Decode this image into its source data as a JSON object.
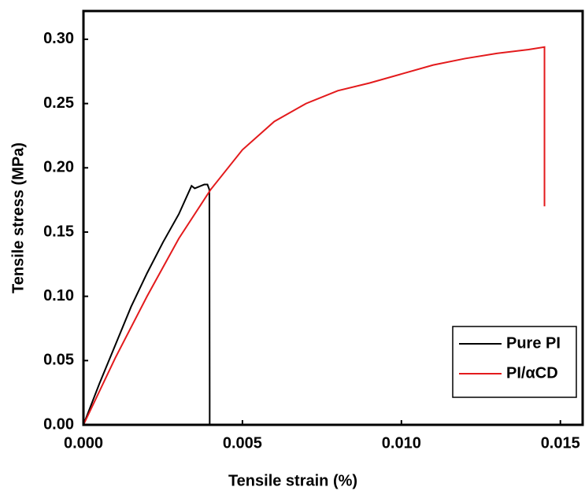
{
  "chart_data": {
    "type": "line",
    "x_label": "Tensile strain (%)",
    "y_label": "Tensile stress (MPa)",
    "xlim": [
      0,
      0.0157
    ],
    "ylim": [
      0,
      0.322
    ],
    "xticks": [
      {
        "value": 0,
        "label": "0.000"
      },
      {
        "value": 0.005,
        "label": "0.005"
      },
      {
        "value": 0.01,
        "label": "0.010"
      },
      {
        "value": 0.015,
        "label": "0.015"
      }
    ],
    "yticks": [
      {
        "value": 0,
        "label": "0.00"
      },
      {
        "value": 0.05,
        "label": "0.05"
      },
      {
        "value": 0.1,
        "label": "0.10"
      },
      {
        "value": 0.15,
        "label": "0.15"
      },
      {
        "value": 0.2,
        "label": "0.20"
      },
      {
        "value": 0.25,
        "label": "0.25"
      },
      {
        "value": 0.3,
        "label": "0.30"
      }
    ],
    "legend_position": "lower right",
    "series": [
      {
        "name": "Pure PI",
        "color": "#000000",
        "x": [
          0,
          0.0005,
          0.001,
          0.0015,
          0.002,
          0.0025,
          0.003,
          0.0034,
          0.0035,
          0.0036,
          0.0038,
          0.0039,
          0.00396,
          0.00397,
          0.00397
        ],
        "values": [
          0,
          0.032,
          0.062,
          0.092,
          0.118,
          0.142,
          0.164,
          0.186,
          0.184,
          0.185,
          0.187,
          0.187,
          0.183,
          0.02,
          0
        ]
      },
      {
        "name": "PI/αCD",
        "color": "#e31a1c",
        "x": [
          0,
          0.001,
          0.002,
          0.003,
          0.004,
          0.005,
          0.006,
          0.007,
          0.008,
          0.009,
          0.01,
          0.011,
          0.012,
          0.013,
          0.014,
          0.0145,
          0.0145
        ],
        "values": [
          0,
          0.052,
          0.1,
          0.145,
          0.183,
          0.214,
          0.236,
          0.25,
          0.26,
          0.266,
          0.273,
          0.28,
          0.285,
          0.289,
          0.292,
          0.294,
          0.17
        ]
      }
    ]
  }
}
